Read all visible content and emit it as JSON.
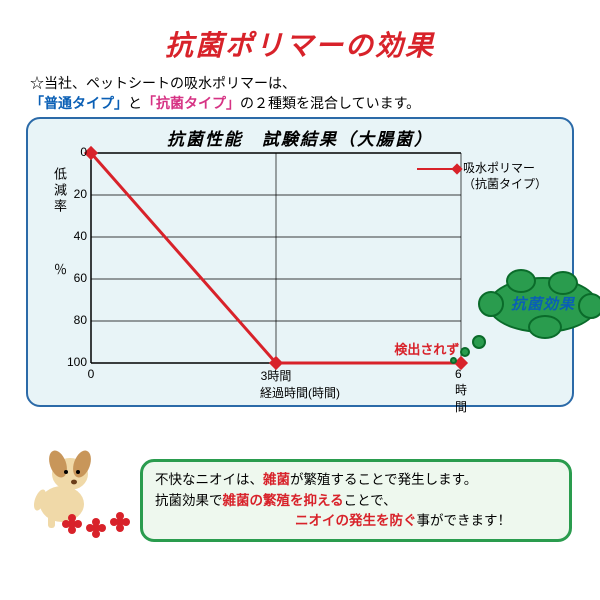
{
  "colors": {
    "title": "#d8222a",
    "blue": "#0a5fb5",
    "red": "#d8222a",
    "pink": "#d63384",
    "panel_border": "#2b6aa8",
    "panel_bg": "#e8f4f7",
    "black": "#000000",
    "cloud_fill": "#2a9c4e",
    "cloud_stroke": "#0a6b2a",
    "dog_body": "#f0d9a8",
    "dog_ear": "#c8965a",
    "flower": "#d8222a",
    "caption_border": "#2a9c4e",
    "caption_bg": "#eef8ee"
  },
  "title": "抗菌ポリマーの効果",
  "subtitle_prefix": "☆当社、ペットシートの吸水ポリマーは、",
  "subtitle_line2a": "「普通タイプ」",
  "subtitle_line2b": "と",
  "subtitle_line2c": "「抗菌タイプ」",
  "subtitle_line2d": "の２種類を混合しています。",
  "chart": {
    "title": "抗菌性能　試験結果（大腸菌）",
    "ylabel": "低減率",
    "yunit": "％",
    "xlabel": "経過時間(時間)",
    "ylim": [
      100,
      0
    ],
    "ytick_labels": [
      "0",
      "20",
      "40",
      "60",
      "80",
      "100"
    ],
    "ytick_positions_pct": [
      0,
      20,
      40,
      60,
      80,
      100
    ],
    "xtick_labels": [
      "0",
      "3時間",
      "6時間"
    ],
    "xtick_positions_pct": [
      0,
      50,
      100
    ],
    "series": {
      "name1": "吸水ポリマー",
      "name2": "（抗菌タイプ）",
      "color": "#d8222a",
      "line_width": 3,
      "x_pct": [
        0,
        50,
        100
      ],
      "y_pct": [
        0,
        100,
        100
      ]
    },
    "annotation": "検出されず"
  },
  "cloud_text": "抗菌効果",
  "caption": {
    "l1a": "不快なニオイは、",
    "l1b": "雑菌",
    "l1c": "が繁殖することで発生します。",
    "l2a": "抗菌効果で",
    "l2b": "雑菌の繁殖を抑える",
    "l2c": "ことで、",
    "l3": "ニオイの発生を防ぐ",
    "l3b": "事ができます！"
  }
}
